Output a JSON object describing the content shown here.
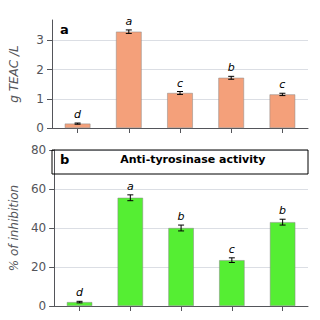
{
  "chart_data": [
    {
      "type": "bar",
      "panel_label": "a",
      "ylabel": "g TEAC /L",
      "categories": [
        null,
        null,
        null,
        null,
        null
      ],
      "values": [
        0.15,
        3.3,
        1.2,
        1.72,
        1.15
      ],
      "errors": [
        0.02,
        0.06,
        0.05,
        0.05,
        0.04
      ],
      "annotations": [
        "d",
        "a",
        "c",
        "b",
        "c"
      ],
      "color": "#F4A07A",
      "ylim": [
        0,
        3.7
      ],
      "yticks": [
        0,
        1,
        2,
        3
      ],
      "grid": true,
      "tick_labels": "y"
    },
    {
      "type": "bar",
      "panel_label": "b",
      "title": "Anti-tyrosinase activity",
      "ylabel": "% of inhibition",
      "categories": [
        null,
        null,
        null,
        null,
        null
      ],
      "values": [
        2.0,
        55.5,
        40.0,
        23.5,
        43.0
      ],
      "errors": [
        0.4,
        1.5,
        1.5,
        1.2,
        1.5
      ],
      "annotations": [
        "d",
        "a",
        "b",
        "c",
        "b"
      ],
      "color": "#55EE33",
      "ylim": [
        0,
        80
      ],
      "yticks": [
        0,
        20,
        40,
        60,
        80
      ],
      "grid": true,
      "tick_labels": "y"
    }
  ]
}
